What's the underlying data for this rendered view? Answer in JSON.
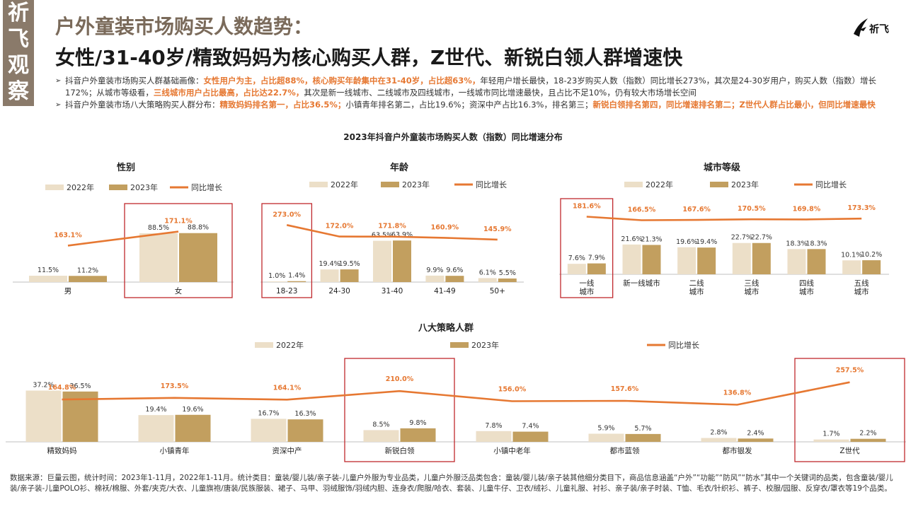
{
  "header": {
    "stamp": [
      "祈",
      "飞",
      "观",
      "察"
    ],
    "title1": "户外童装市场购买人数趋势：",
    "title2": "女性/31-40岁/精致妈妈为核心购买人群，Z世代、新锐白领人群增速快",
    "brand": "祈飞"
  },
  "bullets": [
    [
      {
        "t": "抖音户外童装市场购买人群基础画像："
      },
      {
        "t": "女性用户为主，占比超88%，核心购买年龄集中在31-40岁，占比超63%，",
        "hl": true
      },
      {
        "t": "年轻用户增长最快，18-23岁购买人数（指数）同比增长273%，其次是24-30岁用户，购买人数（指数）增长172%；从城市等级看，"
      },
      {
        "t": "三线城市用户占比最高，占比达22.7%，",
        "hl": true
      },
      {
        "t": "其次是新一线城市、二线城市及四线城市，一线城市同比增速最快，且占比不足10%，仍有较大市场增长空间"
      }
    ],
    [
      {
        "t": "抖音户外童装市场八大策略购买人群分布："
      },
      {
        "t": "精致妈妈排名第一，占比36.5%；",
        "hl": true
      },
      {
        "t": "小镇青年排名第二，占比19.6%；资深中产占比16.3%，排名第三；"
      },
      {
        "t": "新锐白领排名第四，同比增速排名第二；Z世代人群占比最小，但同比增速最快",
        "hl": true
      }
    ]
  ],
  "footnote": "数据来源：巨量云图，统计时间：2023年1-11月，2022年1-11月。统计类目：童装/婴儿装/亲子装-儿童户外服为专业品类，儿童户外服泛品类包含：童装/婴儿装/亲子装其他细分类目下，商品信息涵盖“户外”“功能”“防风”“防水”其中一个关键词的品类，包含童装/婴儿装/亲子装-儿童POLO衫、棉袄/棉服、外套/夹克/大衣、儿童旗袍/唐装/民族服装、裙子、马甲、羽绒服饰/羽绒内胆、连身衣/爬服/哈衣、套装、儿童牛仔、卫衣/绒衫、儿童礼服、衬衫、亲子装/亲子时装、T恤、毛衣/针织衫、裤子、校服/园服、反穿衣/罩衣等19个品类。",
  "colors": {
    "c2022": "#ecdfc8",
    "c2023": "#c29f5f",
    "growth": "#e67832",
    "highlight": "#c0282d",
    "axis": "#bfbfbf"
  },
  "chart_data": {
    "title": "2023年抖音户外童装市场购买人数（指数）同比增速分布",
    "legend": {
      "s2022": "2022年",
      "s2023": "2023年",
      "growth": "同比增长"
    },
    "panels": [
      {
        "title": "性别",
        "type": "bar+line",
        "categories": [
          "男",
          "女"
        ],
        "series": [
          {
            "name": "2022年",
            "values": [
              11.5,
              88.5
            ]
          },
          {
            "name": "2023年",
            "values": [
              11.2,
              88.8
            ]
          },
          {
            "name": "同比增长",
            "values": [
              163.1,
              171.1
            ]
          }
        ],
        "highlight": [
          "女"
        ]
      },
      {
        "title": "年龄",
        "type": "bar+line",
        "categories": [
          "18-23",
          "24-30",
          "31-40",
          "41-49",
          "50+"
        ],
        "series": [
          {
            "name": "2022年",
            "values": [
              1.0,
              19.4,
              63.5,
              9.9,
              6.1
            ]
          },
          {
            "name": "2023年",
            "values": [
              1.4,
              19.5,
              63.9,
              9.6,
              5.5
            ]
          },
          {
            "name": "同比增长",
            "values": [
              273.0,
              172.0,
              171.8,
              160.9,
              145.9
            ]
          }
        ],
        "highlight": [
          "18-23"
        ]
      },
      {
        "title": "城市等级",
        "type": "bar+line",
        "categories": [
          "一线\n城市",
          "新一线城市",
          "二线\n城市",
          "三线\n城市",
          "四线\n城市",
          "五线\n城市"
        ],
        "series": [
          {
            "name": "2022年",
            "values": [
              7.6,
              21.6,
              19.6,
              22.7,
              18.3,
              10.1
            ]
          },
          {
            "name": "2023年",
            "values": [
              7.9,
              21.3,
              19.4,
              22.7,
              18.3,
              10.2
            ]
          },
          {
            "name": "同比增长",
            "values": [
              181.6,
              166.5,
              167.6,
              170.5,
              169.8,
              173.3
            ]
          }
        ],
        "highlight": [
          "一线\n城市"
        ]
      },
      {
        "title": "八大策略人群",
        "type": "bar+line",
        "categories": [
          "精致妈妈",
          "小镇青年",
          "资深中产",
          "新锐白领",
          "小镇中老年",
          "都市蓝领",
          "都市银发",
          "Z世代"
        ],
        "series": [
          {
            "name": "2022年",
            "values": [
              37.2,
              19.4,
              16.7,
              8.5,
              7.8,
              5.9,
              2.8,
              1.7
            ]
          },
          {
            "name": "2023年",
            "values": [
              36.5,
              19.6,
              16.3,
              9.8,
              7.4,
              5.7,
              2.4,
              2.2
            ]
          },
          {
            "name": "同比增长",
            "values": [
              164.8,
              173.5,
              164.1,
              210.0,
              156.0,
              157.6,
              136.8,
              257.5
            ]
          }
        ],
        "highlight": [
          "新锐白领",
          "Z世代"
        ]
      }
    ]
  }
}
